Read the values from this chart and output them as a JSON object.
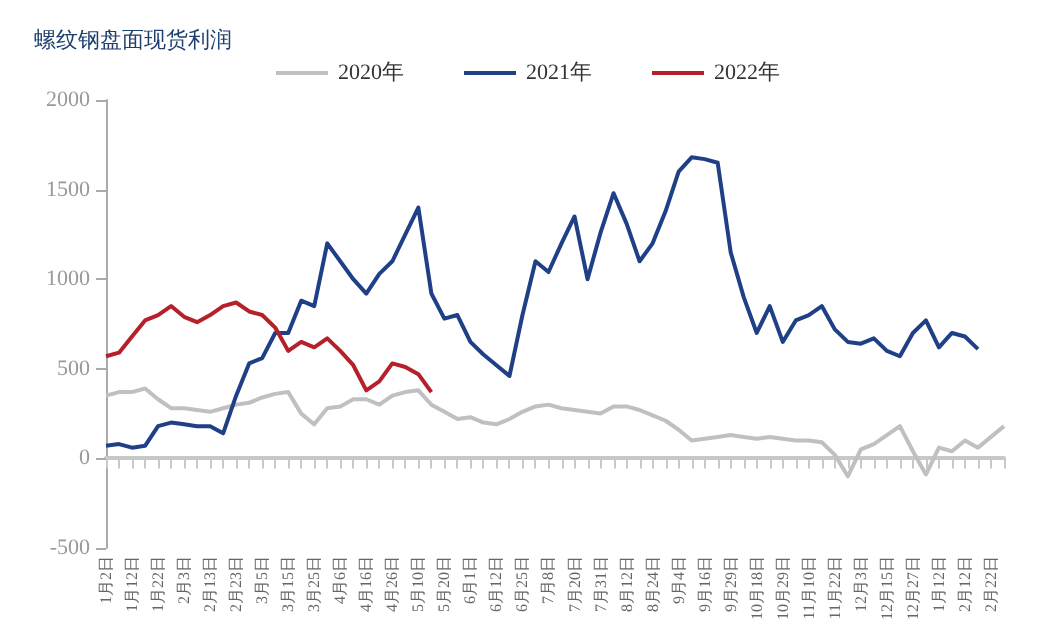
{
  "chart_data": {
    "type": "line",
    "title": "螺纹钢盘面现货利润",
    "categories": [
      "1月2日",
      null,
      "1月12日",
      null,
      "1月22日",
      null,
      "2月3日",
      null,
      "2月13日",
      null,
      "2月23日",
      null,
      "3月5日",
      null,
      "3月15日",
      null,
      "3月25日",
      null,
      "4月6日",
      null,
      "4月16日",
      null,
      "4月26日",
      null,
      "5月10日",
      null,
      "5月20日",
      null,
      "6月1日",
      null,
      "6月12日",
      null,
      "6月25日",
      null,
      "7月8日",
      null,
      "7月20日",
      null,
      "7月31日",
      null,
      "8月12日",
      null,
      "8月24日",
      null,
      "9月4日",
      null,
      "9月16日",
      null,
      "9月29日",
      null,
      "10月18日",
      null,
      "10月29日",
      null,
      "11月10日",
      null,
      "11月22日",
      null,
      "12月3日",
      null,
      "12月15日",
      null,
      "12月27日",
      null,
      "1月12日",
      null,
      "2月12日",
      null,
      "2月22日",
      null
    ],
    "series": [
      {
        "name": "2020年",
        "color": "#c0c0c0",
        "values": [
          350,
          370,
          370,
          390,
          330,
          280,
          280,
          270,
          260,
          280,
          300,
          310,
          340,
          360,
          370,
          250,
          190,
          280,
          290,
          330,
          330,
          300,
          350,
          370,
          380,
          300,
          260,
          220,
          230,
          200,
          190,
          220,
          260,
          290,
          300,
          280,
          270,
          260,
          250,
          290,
          290,
          270,
          240,
          210,
          160,
          100,
          110,
          120,
          130,
          120,
          110,
          120,
          110,
          100,
          100,
          90,
          20,
          -100,
          50,
          80,
          130,
          180,
          40,
          -90,
          60,
          40,
          100,
          60,
          120,
          180
        ]
      },
      {
        "name": "2021年",
        "color": "#1f3f86",
        "values": [
          70,
          80,
          60,
          70,
          180,
          200,
          190,
          180,
          180,
          140,
          350,
          530,
          560,
          700,
          700,
          880,
          850,
          1200,
          1100,
          1000,
          920,
          1030,
          1100,
          1250,
          1400,
          920,
          780,
          800,
          650,
          580,
          520,
          460,
          800,
          1100,
          1040,
          1200,
          1350,
          1000,
          1260,
          1480,
          1310,
          1100,
          1200,
          1380,
          1600,
          1680,
          1670,
          1650,
          1150,
          900,
          700,
          850,
          650,
          770,
          800,
          850,
          720,
          650,
          640,
          670,
          600,
          570,
          700,
          770,
          620,
          700,
          680,
          610,
          null,
          null
        ]
      },
      {
        "name": "2022年",
        "color": "#b5202a",
        "values": [
          570,
          590,
          680,
          770,
          800,
          850,
          790,
          760,
          800,
          850,
          870,
          820,
          800,
          730,
          600,
          650,
          620,
          670,
          600,
          520,
          380,
          430,
          530,
          510,
          470,
          370,
          null,
          null,
          null,
          null,
          null,
          null,
          null,
          null,
          null,
          null,
          null,
          null,
          null,
          null,
          null,
          null,
          null,
          null,
          null,
          null,
          null,
          null,
          null,
          null,
          null,
          null,
          null,
          null,
          null,
          null,
          null,
          null,
          null,
          null,
          null,
          null,
          null,
          null,
          null,
          null,
          null,
          null,
          null,
          null
        ]
      }
    ],
    "ylim": [
      -500,
      2000
    ],
    "yticks": [
      -500,
      0,
      500,
      1000,
      1500,
      2000
    ],
    "legend": "top",
    "marker": "none",
    "line_style": "solid"
  }
}
